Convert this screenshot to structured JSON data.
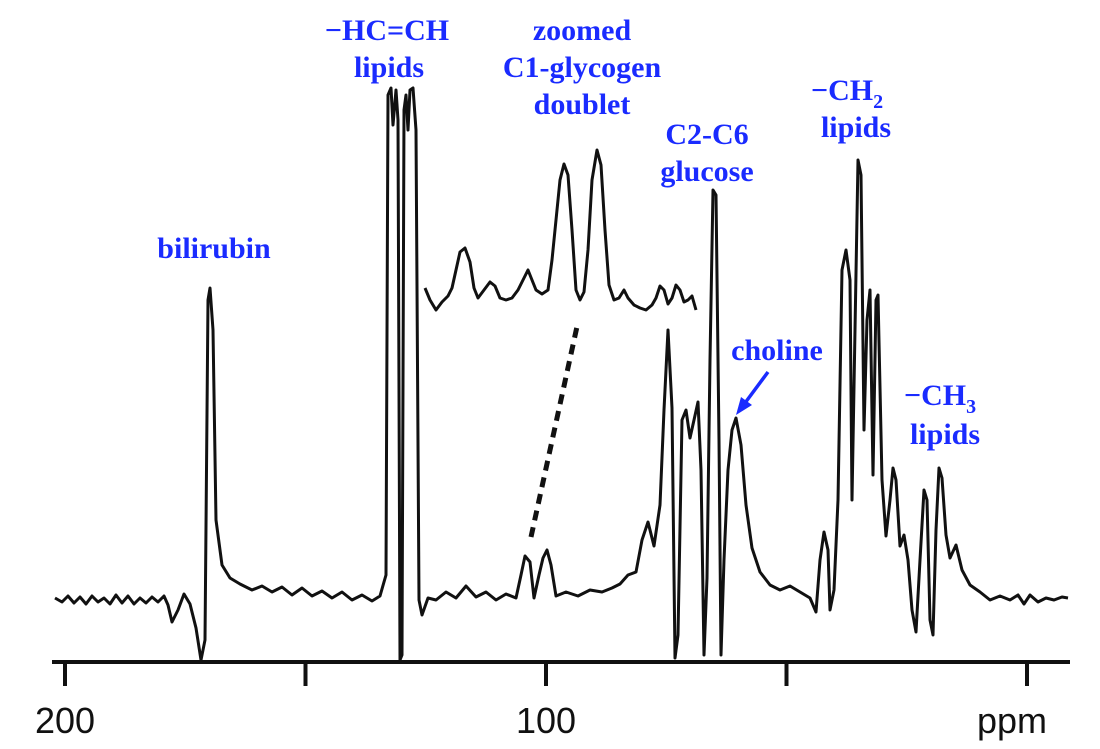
{
  "chart_data": {
    "type": "line",
    "title": "",
    "xlabel": "ppm",
    "ylabel": "",
    "xlim": [
      200,
      0
    ],
    "x_axis_reversed": true,
    "x_ticks": [
      200,
      100
    ],
    "x_tick_labels": [
      "200",
      "100"
    ],
    "grid": false,
    "colors": {
      "spectrum": "#111111",
      "annotation": "#1a2bff"
    },
    "annotations": [
      {
        "id": "bilirubin",
        "lines": [
          "bilirubin"
        ]
      },
      {
        "id": "hc-ch-lipids",
        "lines": [
          "−HC=CH",
          "lipids"
        ]
      },
      {
        "id": "zoomed-c1",
        "lines": [
          "zoomed",
          "C1-glycogen",
          "doublet"
        ]
      },
      {
        "id": "c2-c6",
        "lines": [
          "C2-C6",
          "glucose"
        ]
      },
      {
        "id": "ch2-lipids",
        "lines": [
          "−CH",
          "lipids"
        ],
        "subscript": "2"
      },
      {
        "id": "choline",
        "lines": [
          "choline"
        ]
      },
      {
        "id": "ch3-lipids",
        "lines": [
          "−CH",
          "lipids"
        ],
        "subscript": "3"
      }
    ],
    "peaks_ppm": [
      {
        "id": "bilirubin",
        "x": 170
      },
      {
        "id": "hc-ch-lipids-1",
        "x": 130
      },
      {
        "id": "hc-ch-lipids-2",
        "x": 128
      },
      {
        "id": "c1-glycogen-1",
        "x": 104
      },
      {
        "id": "c1-glycogen-2",
        "x": 100
      },
      {
        "id": "c2-c6-glucose",
        "x": 72
      },
      {
        "id": "choline",
        "x": 67
      },
      {
        "id": "ch2-lipids",
        "x": 30
      },
      {
        "id": "ch3-lipids",
        "x": 14
      }
    ]
  }
}
